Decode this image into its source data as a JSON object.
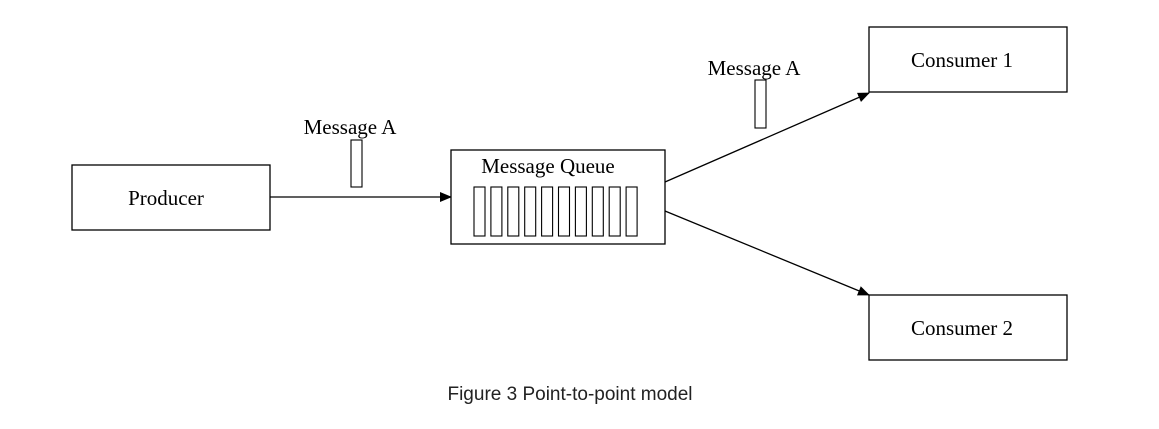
{
  "diagram": {
    "nodes": {
      "producer": "Producer",
      "queue": "Message Queue",
      "consumer1": "Consumer 1",
      "consumer2": "Consumer 2"
    },
    "messages": {
      "to_queue": "Message A",
      "to_consumer1": "Message A"
    },
    "queue_slot_count": 10,
    "caption": "Figure 3 Point-to-point model"
  },
  "colors": {
    "stroke": "#000000",
    "caption_text": "#222222",
    "background": "#ffffff"
  }
}
